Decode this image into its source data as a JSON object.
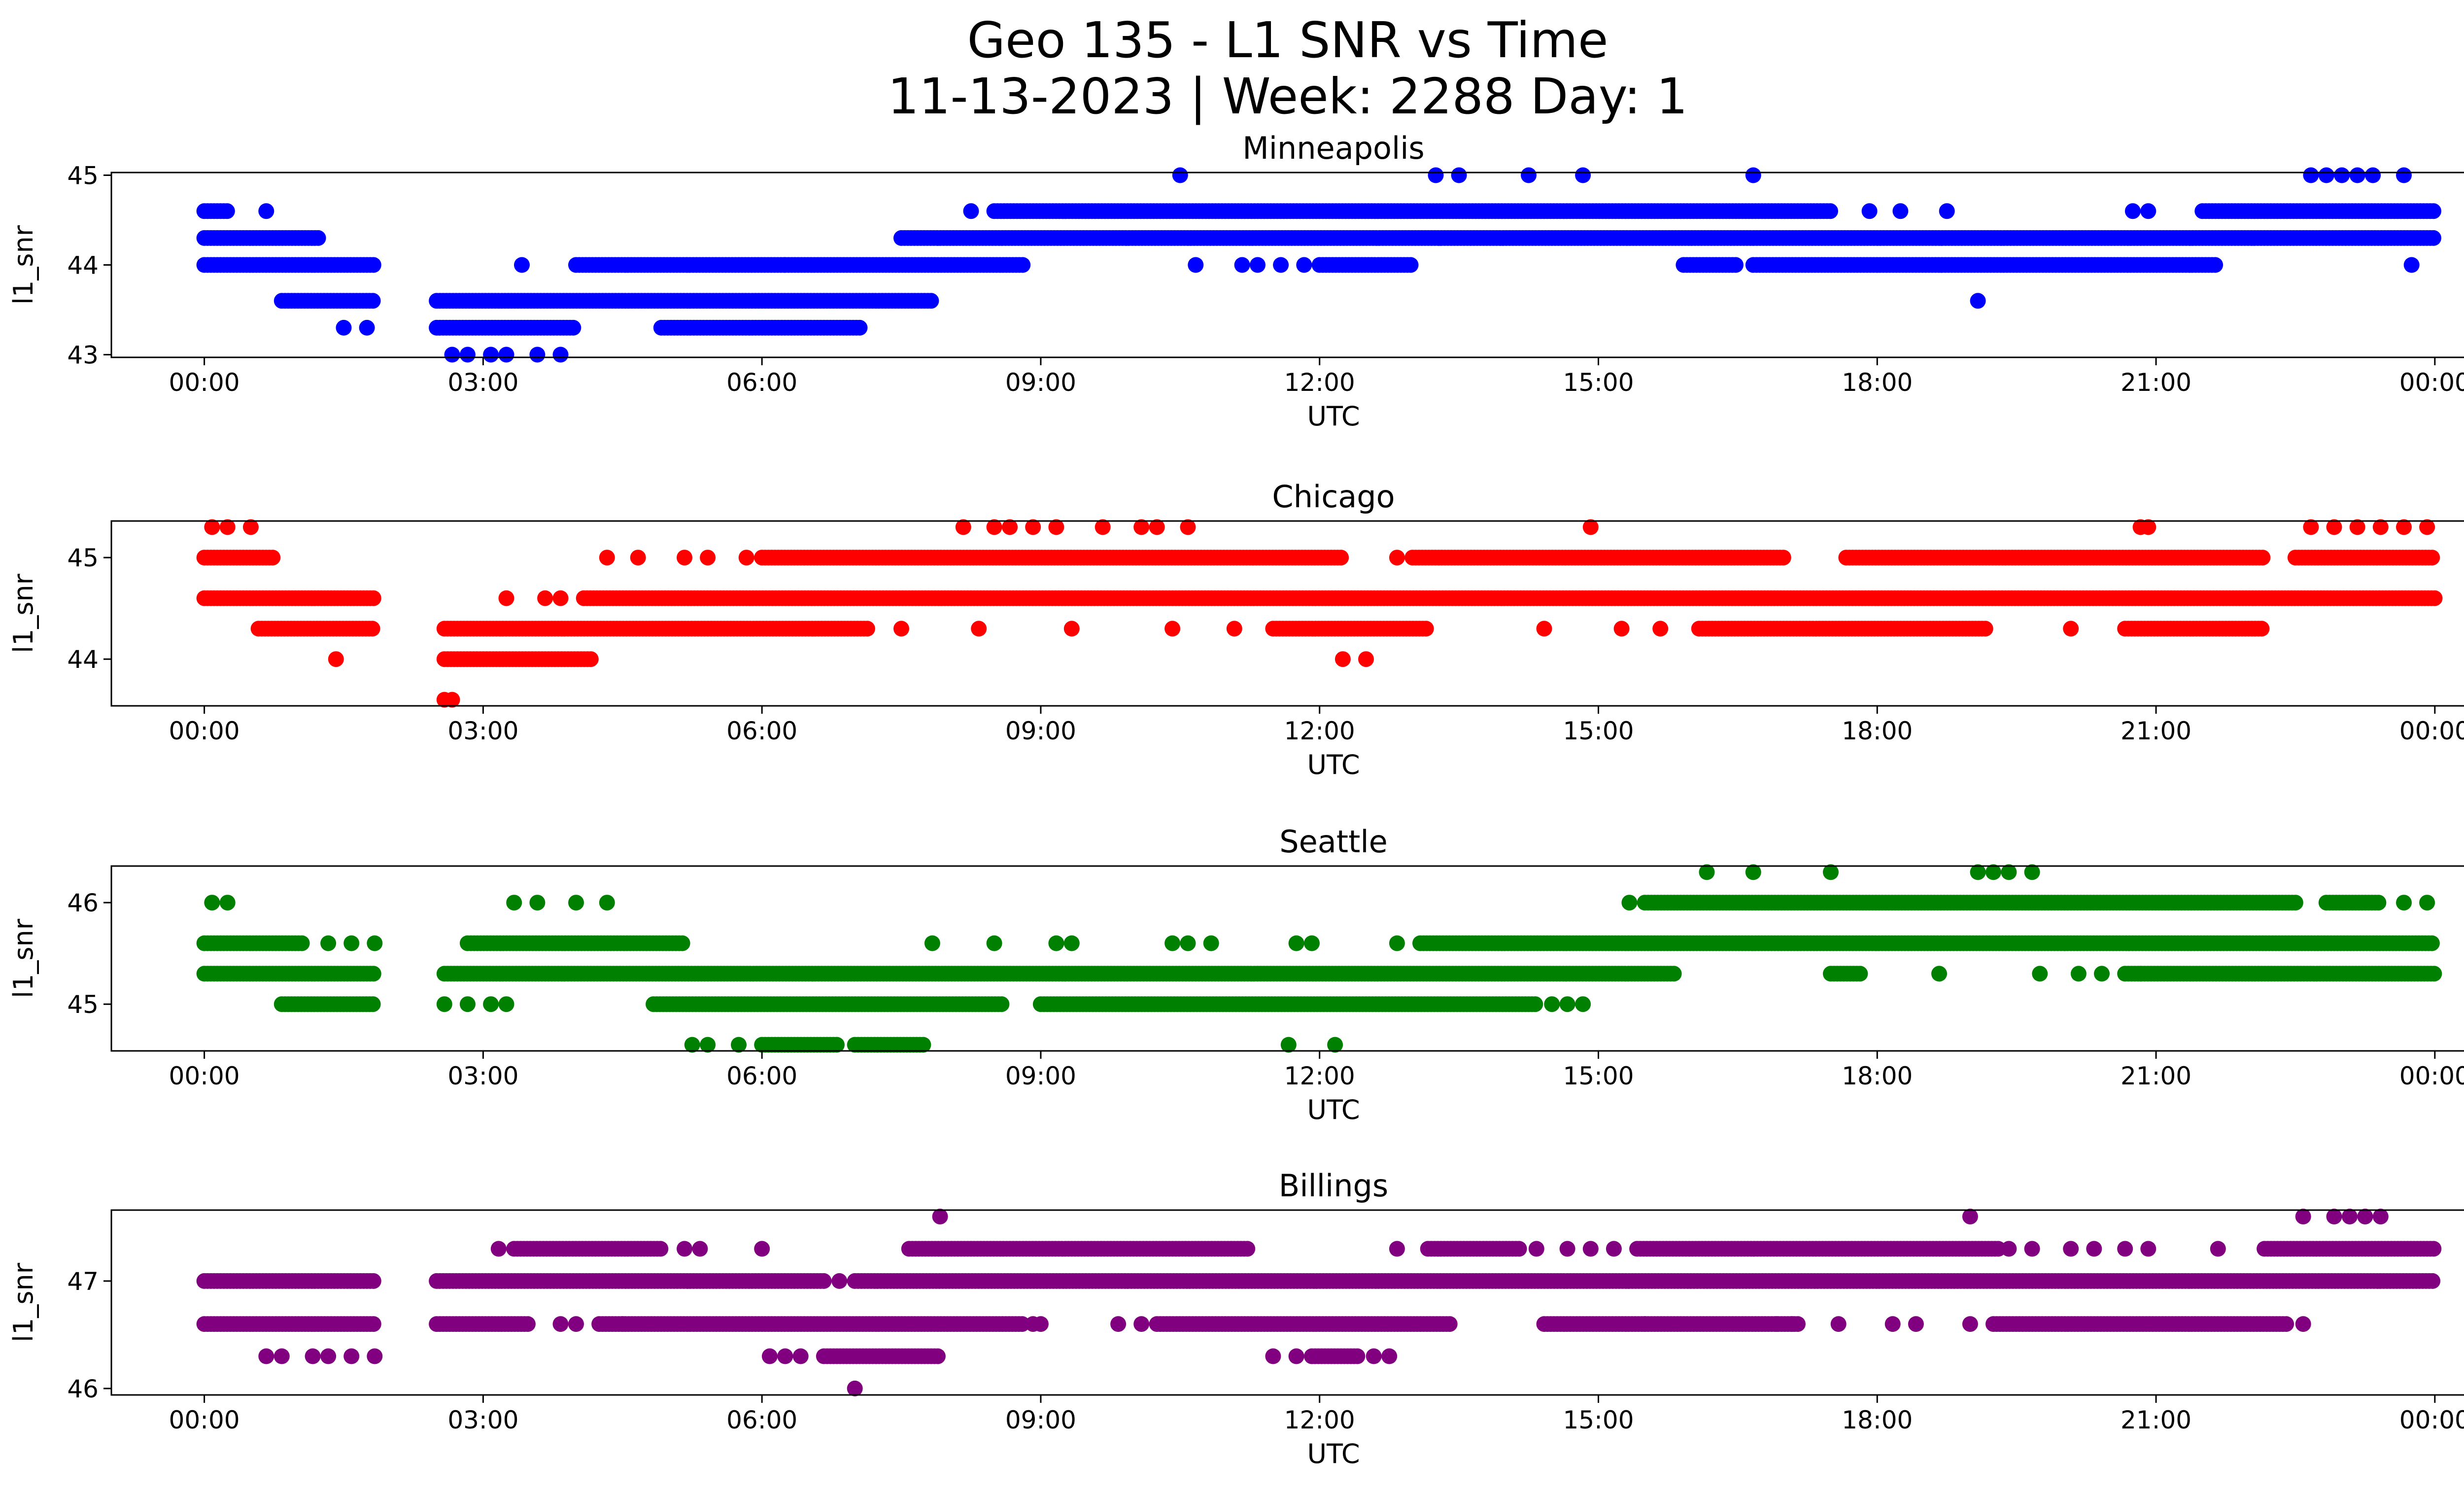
{
  "figure": {
    "title_line1": "Geo 135 - L1 SNR vs Time",
    "title_line2": "11-13-2023 | Week: 2288 Day: 1"
  },
  "chart_data": [
    {
      "type": "scatter",
      "title": "Minneapolis",
      "xlabel": "UTC",
      "ylabel": "l1_snr",
      "color": "#0000ff",
      "ylim": [
        42.97,
        45.03
      ],
      "yticks": [
        43,
        44,
        45
      ],
      "xlim_hours": [
        -1.0,
        25.3
      ],
      "xticks": [
        "00:00",
        "03:00",
        "06:00",
        "09:00",
        "12:00",
        "15:00",
        "18:00",
        "21:00",
        "00:00"
      ],
      "points_dense_segments": [
        {
          "y": 44.6,
          "x": [
            [
              "00:00",
              "00:15"
            ],
            [
              "08:30",
              "17:30"
            ],
            [
              "21:30",
              "24:00"
            ]
          ]
        },
        {
          "y": 44.3,
          "x": [
            [
              "00:00",
              "01:15"
            ],
            [
              "07:30",
              "24:00"
            ]
          ]
        },
        {
          "y": 44.0,
          "x": [
            [
              "00:00",
              "01:50"
            ],
            [
              "04:00",
              "06:15"
            ],
            [
              "06:15",
              "08:50"
            ],
            [
              "12:00",
              "13:00"
            ],
            [
              "15:55",
              "16:30"
            ],
            [
              "16:40",
              "21:40"
            ]
          ]
        },
        {
          "y": 43.6,
          "x": [
            [
              "00:50",
              "01:50"
            ],
            [
              "02:30",
              "07:50"
            ]
          ]
        },
        {
          "y": 43.3,
          "x": [
            [
              "02:30",
              "04:00"
            ],
            [
              "04:55",
              "07:05"
            ]
          ]
        }
      ],
      "points_sparse": [
        {
          "y": 45.0,
          "x": [
            "10:30",
            "13:15",
            "13:30",
            "14:15",
            "14:50",
            "16:40",
            "22:40",
            "22:50",
            "23:00",
            "23:10",
            "23:20",
            "23:40"
          ]
        },
        {
          "y": 44.6,
          "x": [
            "00:40",
            "08:15",
            "17:55",
            "18:15",
            "18:45",
            "20:45",
            "20:55"
          ]
        },
        {
          "y": 44.0,
          "x": [
            "03:25",
            "10:40",
            "11:10",
            "11:20",
            "11:35",
            "11:50",
            "23:45"
          ]
        },
        {
          "y": 43.6,
          "x": [
            "19:05"
          ]
        },
        {
          "y": 43.3,
          "x": [
            "01:30",
            "01:45"
          ]
        },
        {
          "y": 43.0,
          "x": [
            "02:40",
            "02:50",
            "03:05",
            "03:15",
            "03:35",
            "03:50"
          ]
        }
      ]
    },
    {
      "type": "scatter",
      "title": "Chicago",
      "xlabel": "UTC",
      "ylabel": "l1_snr",
      "color": "#ff0000",
      "ylim": [
        43.54,
        45.36
      ],
      "yticks": [
        44,
        45
      ],
      "xlim_hours": [
        -1.0,
        25.3
      ],
      "xticks": [
        "00:00",
        "03:00",
        "06:00",
        "09:00",
        "12:00",
        "15:00",
        "18:00",
        "21:00",
        "00:00"
      ],
      "points_dense_segments": [
        {
          "y": 45.0,
          "x": [
            [
              "00:00",
              "00:45"
            ],
            [
              "06:00",
              "12:15"
            ],
            [
              "13:00",
              "17:00"
            ],
            [
              "17:40",
              "22:10"
            ],
            [
              "22:30",
              "24:00"
            ]
          ]
        },
        {
          "y": 44.6,
          "x": [
            [
              "00:00",
              "01:50"
            ],
            [
              "04:05",
              "24:00"
            ]
          ]
        },
        {
          "y": 44.3,
          "x": [
            [
              "00:35",
              "01:50"
            ],
            [
              "02:35",
              "07:10"
            ],
            [
              "11:30",
              "13:10"
            ],
            [
              "16:05",
              "19:10"
            ],
            [
              "20:40",
              "22:10"
            ]
          ]
        },
        {
          "y": 44.0,
          "x": [
            [
              "02:35",
              "04:10"
            ]
          ]
        }
      ],
      "points_sparse": [
        {
          "y": 45.3,
          "x": [
            "00:05",
            "00:15",
            "00:30",
            "08:10",
            "08:30",
            "08:40",
            "08:55",
            "09:10",
            "09:40",
            "10:05",
            "10:15",
            "10:35",
            "14:55",
            "20:50",
            "20:55",
            "22:40",
            "22:55",
            "23:10",
            "23:25",
            "23:40",
            "23:55"
          ]
        },
        {
          "y": 45.0,
          "x": [
            "04:20",
            "04:40",
            "05:10",
            "05:25",
            "05:50",
            "12:50"
          ]
        },
        {
          "y": 44.6,
          "x": [
            "03:15",
            "03:40",
            "03:50"
          ]
        },
        {
          "y": 44.3,
          "x": [
            "07:30",
            "08:20",
            "09:20",
            "10:25",
            "11:05",
            "14:25",
            "15:15",
            "15:40",
            "20:05"
          ]
        },
        {
          "y": 44.0,
          "x": [
            "01:25",
            "12:15",
            "12:30"
          ]
        },
        {
          "y": 43.6,
          "x": [
            "02:35",
            "02:40"
          ]
        }
      ]
    },
    {
      "type": "scatter",
      "title": "Seattle",
      "xlabel": "UTC",
      "ylabel": "l1_snr",
      "color": "#008000",
      "ylim": [
        44.54,
        46.36
      ],
      "yticks": [
        45,
        46
      ],
      "xlim_hours": [
        -1.0,
        25.3
      ],
      "xticks": [
        "00:00",
        "03:00",
        "06:00",
        "09:00",
        "12:00",
        "15:00",
        "18:00",
        "21:00",
        "00:00"
      ],
      "points_dense_segments": [
        {
          "y": 46.0,
          "x": [
            [
              "15:30",
              "22:30"
            ],
            [
              "22:50",
              "23:25"
            ]
          ]
        },
        {
          "y": 45.6,
          "x": [
            [
              "00:00",
              "01:05"
            ],
            [
              "02:50",
              "05:10"
            ],
            [
              "13:05",
              "24:00"
            ]
          ]
        },
        {
          "y": 45.3,
          "x": [
            [
              "00:00",
              "01:50"
            ],
            [
              "02:35",
              "07:10"
            ],
            [
              "07:10",
              "15:50"
            ],
            [
              "17:30",
              "17:50"
            ],
            [
              "20:40",
              "24:00"
            ]
          ]
        },
        {
          "y": 45.0,
          "x": [
            [
              "00:50",
              "01:50"
            ],
            [
              "04:50",
              "08:35"
            ],
            [
              "09:00",
              "14:20"
            ]
          ]
        },
        {
          "y": 44.6,
          "x": [
            [
              "06:00",
              "06:50"
            ],
            [
              "07:00",
              "07:45"
            ]
          ]
        }
      ],
      "points_sparse": [
        {
          "y": 46.3,
          "x": [
            "16:10",
            "16:40",
            "17:30",
            "19:05",
            "19:15",
            "19:25",
            "19:40"
          ]
        },
        {
          "y": 46.0,
          "x": [
            "00:05",
            "00:15",
            "03:20",
            "03:35",
            "04:00",
            "04:20",
            "15:20",
            "23:40",
            "23:55"
          ]
        },
        {
          "y": 45.6,
          "x": [
            "01:20",
            "01:35",
            "01:50",
            "07:50",
            "08:30",
            "09:10",
            "09:20",
            "10:25",
            "10:35",
            "10:50",
            "11:45",
            "11:55",
            "12:50"
          ]
        },
        {
          "y": 45.3,
          "x": [
            "18:40",
            "19:45",
            "20:10",
            "20:25",
            "20:50"
          ]
        },
        {
          "y": 45.0,
          "x": [
            "02:35",
            "02:50",
            "03:05",
            "03:15",
            "14:30",
            "14:40",
            "14:50"
          ]
        },
        {
          "y": 44.6,
          "x": [
            "05:15",
            "05:25",
            "05:45",
            "11:40",
            "12:10"
          ]
        }
      ]
    },
    {
      "type": "scatter",
      "title": "Billings",
      "xlabel": "UTC",
      "ylabel": "l1_snr",
      "color": "#800080",
      "ylim": [
        45.94,
        47.66
      ],
      "yticks": [
        46,
        47
      ],
      "xlim_hours": [
        -1.0,
        25.3
      ],
      "xticks": [
        "00:00",
        "03:00",
        "06:00",
        "09:00",
        "12:00",
        "15:00",
        "18:00",
        "21:00",
        "00:00"
      ],
      "points_dense_segments": [
        {
          "y": 47.3,
          "x": [
            [
              "03:20",
              "04:55"
            ],
            [
              "07:35",
              "11:15"
            ],
            [
              "13:10",
              "14:10"
            ],
            [
              "15:25",
              "19:20"
            ],
            [
              "22:10",
              "24:00"
            ]
          ]
        },
        {
          "y": 47.0,
          "x": [
            [
              "00:00",
              "01:50"
            ],
            [
              "02:30",
              "06:40"
            ],
            [
              "07:00",
              "24:00"
            ]
          ]
        },
        {
          "y": 46.6,
          "x": [
            [
              "00:00",
              "01:50"
            ],
            [
              "02:30",
              "03:30"
            ],
            [
              "04:15",
              "08:50"
            ],
            [
              "10:15",
              "13:25"
            ],
            [
              "14:25",
              "15:30"
            ],
            [
              "15:30",
              "17:10"
            ],
            [
              "19:15",
              "22:25"
            ]
          ]
        },
        {
          "y": 46.3,
          "x": [
            [
              "06:40",
              "07:55"
            ],
            [
              "11:55",
              "12:25"
            ]
          ]
        }
      ],
      "points_sparse": [
        {
          "y": 47.6,
          "x": [
            "07:55",
            "19:00",
            "22:35",
            "22:55",
            "23:05",
            "23:15",
            "23:25"
          ]
        },
        {
          "y": 47.3,
          "x": [
            "03:10",
            "05:10",
            "05:20",
            "06:00",
            "12:50",
            "14:20",
            "14:40",
            "14:55",
            "15:10",
            "19:25",
            "19:40",
            "20:05",
            "20:20",
            "20:40",
            "20:55",
            "21:40"
          ]
        },
        {
          "y": 47.0,
          "x": [
            "06:50"
          ]
        },
        {
          "y": 46.6,
          "x": [
            "03:50",
            "04:00",
            "04:30",
            "08:55",
            "09:00",
            "09:50",
            "10:05",
            "15:30",
            "16:55",
            "17:05",
            "17:35",
            "18:10",
            "18:25",
            "19:00",
            "22:35"
          ]
        },
        {
          "y": 46.3,
          "x": [
            "00:40",
            "00:50",
            "01:10",
            "01:20",
            "01:35",
            "01:50",
            "06:05",
            "06:15",
            "06:25",
            "11:30",
            "11:45",
            "12:35",
            "12:45"
          ]
        },
        {
          "y": 46.0,
          "x": [
            "07:00"
          ]
        }
      ]
    }
  ]
}
